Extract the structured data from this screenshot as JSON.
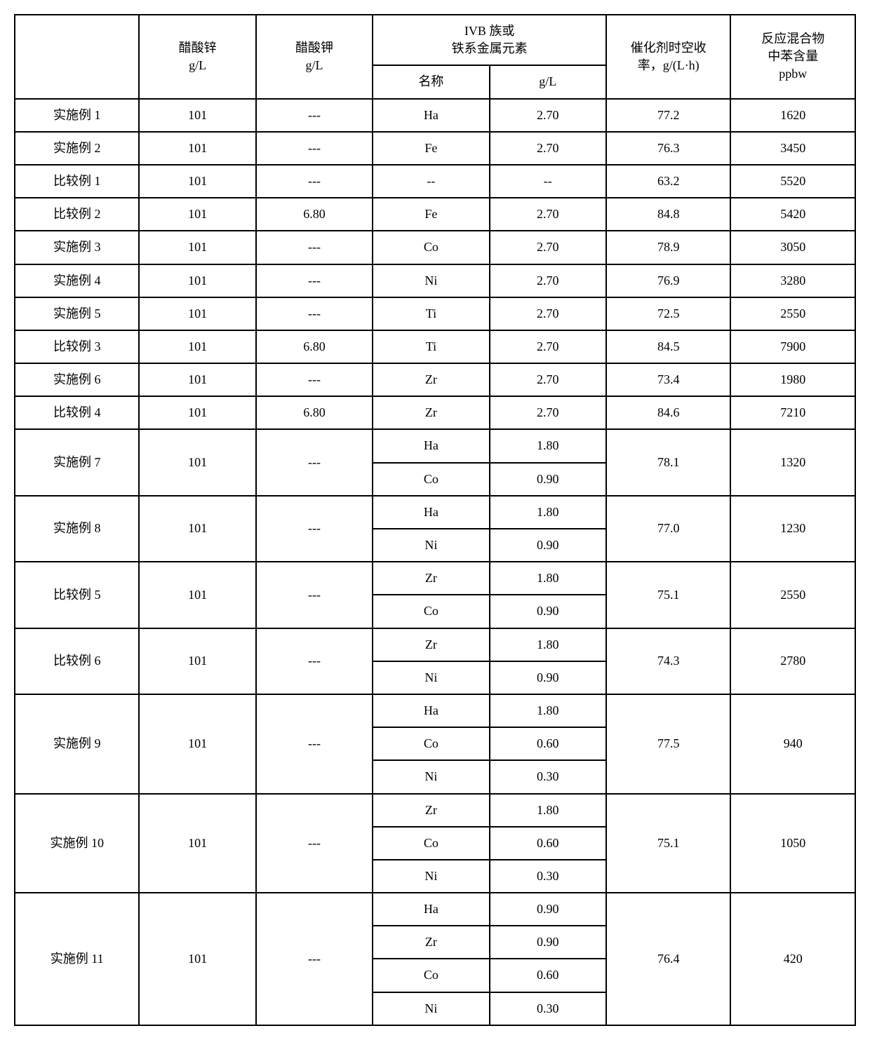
{
  "table": {
    "headers": {
      "blank": "",
      "zinc_acetate": "醋酸锌",
      "zinc_acetate_unit": "g/L",
      "potassium_acetate": "醋酸钾",
      "potassium_acetate_unit": "g/L",
      "ivb_group": "IVB 族或",
      "ivb_group_line2": "铁系金属元素",
      "name_sub": "名称",
      "gl_sub": "g/L",
      "catalyst_yield": "催化剂时空收",
      "catalyst_yield_line2": "率，g/(L·h)",
      "benzene_content": "反应混合物",
      "benzene_content_line2": "中苯含量",
      "benzene_content_line3": "ppbw"
    },
    "rows": [
      {
        "label": "实施例 1",
        "zinc": "101",
        "potassium": "---",
        "elements": [
          {
            "name": "Ha",
            "gl": "2.70"
          }
        ],
        "yield": "77.2",
        "benzene": "1620"
      },
      {
        "label": "实施例 2",
        "zinc": "101",
        "potassium": "---",
        "elements": [
          {
            "name": "Fe",
            "gl": "2.70"
          }
        ],
        "yield": "76.3",
        "benzene": "3450"
      },
      {
        "label": "比较例 1",
        "zinc": "101",
        "potassium": "---",
        "elements": [
          {
            "name": "--",
            "gl": "--"
          }
        ],
        "yield": "63.2",
        "benzene": "5520"
      },
      {
        "label": "比较例 2",
        "zinc": "101",
        "potassium": "6.80",
        "elements": [
          {
            "name": "Fe",
            "gl": "2.70"
          }
        ],
        "yield": "84.8",
        "benzene": "5420"
      },
      {
        "label": "实施例 3",
        "zinc": "101",
        "potassium": "---",
        "elements": [
          {
            "name": "Co",
            "gl": "2.70"
          }
        ],
        "yield": "78.9",
        "benzene": "3050"
      },
      {
        "label": "实施例 4",
        "zinc": "101",
        "potassium": "---",
        "elements": [
          {
            "name": "Ni",
            "gl": "2.70"
          }
        ],
        "yield": "76.9",
        "benzene": "3280"
      },
      {
        "label": "实施例 5",
        "zinc": "101",
        "potassium": "---",
        "elements": [
          {
            "name": "Ti",
            "gl": "2.70"
          }
        ],
        "yield": "72.5",
        "benzene": "2550"
      },
      {
        "label": "比较例 3",
        "zinc": "101",
        "potassium": "6.80",
        "elements": [
          {
            "name": "Ti",
            "gl": "2.70"
          }
        ],
        "yield": "84.5",
        "benzene": "7900"
      },
      {
        "label": "实施例 6",
        "zinc": "101",
        "potassium": "---",
        "elements": [
          {
            "name": "Zr",
            "gl": "2.70"
          }
        ],
        "yield": "73.4",
        "benzene": "1980"
      },
      {
        "label": "比较例 4",
        "zinc": "101",
        "potassium": "6.80",
        "elements": [
          {
            "name": "Zr",
            "gl": "2.70"
          }
        ],
        "yield": "84.6",
        "benzene": "7210"
      },
      {
        "label": "实施例 7",
        "zinc": "101",
        "potassium": "---",
        "elements": [
          {
            "name": "Ha",
            "gl": "1.80"
          },
          {
            "name": "Co",
            "gl": "0.90"
          }
        ],
        "yield": "78.1",
        "benzene": "1320"
      },
      {
        "label": "实施例 8",
        "zinc": "101",
        "potassium": "---",
        "elements": [
          {
            "name": "Ha",
            "gl": "1.80"
          },
          {
            "name": "Ni",
            "gl": "0.90"
          }
        ],
        "yield": "77.0",
        "benzene": "1230"
      },
      {
        "label": "比较例 5",
        "zinc": "101",
        "potassium": "---",
        "elements": [
          {
            "name": "Zr",
            "gl": "1.80"
          },
          {
            "name": "Co",
            "gl": "0.90"
          }
        ],
        "yield": "75.1",
        "benzene": "2550"
      },
      {
        "label": "比较例 6",
        "zinc": "101",
        "potassium": "---",
        "elements": [
          {
            "name": "Zr",
            "gl": "1.80"
          },
          {
            "name": "Ni",
            "gl": "0.90"
          }
        ],
        "yield": "74.3",
        "benzene": "2780"
      },
      {
        "label": "实施例 9",
        "zinc": "101",
        "potassium": "---",
        "elements": [
          {
            "name": "Ha",
            "gl": "1.80"
          },
          {
            "name": "Co",
            "gl": "0.60"
          },
          {
            "name": "Ni",
            "gl": "0.30"
          }
        ],
        "yield": "77.5",
        "benzene": "940"
      },
      {
        "label": "实施例 10",
        "zinc": "101",
        "potassium": "---",
        "elements": [
          {
            "name": "Zr",
            "gl": "1.80"
          },
          {
            "name": "Co",
            "gl": "0.60"
          },
          {
            "name": "Ni",
            "gl": "0.30"
          }
        ],
        "yield": "75.1",
        "benzene": "1050"
      },
      {
        "label": "实施例 11",
        "zinc": "101",
        "potassium": "---",
        "elements": [
          {
            "name": "Ha",
            "gl": "0.90"
          },
          {
            "name": "Zr",
            "gl": "0.90"
          },
          {
            "name": "Co",
            "gl": "0.60"
          },
          {
            "name": "Ni",
            "gl": "0.30"
          }
        ],
        "yield": "76.4",
        "benzene": "420"
      }
    ],
    "style": {
      "border_color": "#000000",
      "background_color": "#ffffff",
      "font_size": 18,
      "border_width": 2
    }
  }
}
